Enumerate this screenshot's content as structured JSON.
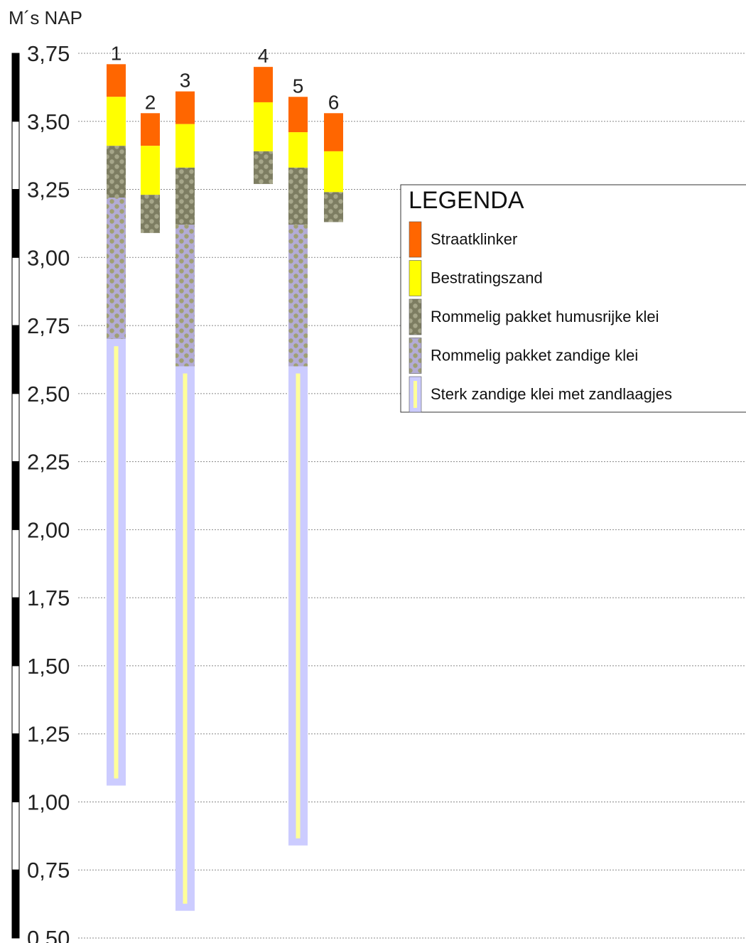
{
  "unit_label": "M´s NAP",
  "axis": {
    "min": 0.5,
    "max": 3.75,
    "tick_labels": [
      "3,75",
      "3,50",
      "3,25",
      "3,00",
      "2,75",
      "2,50",
      "2,25",
      "2,00",
      "1,75",
      "1,50",
      "1,25",
      "1,00",
      "0,75",
      "0,50"
    ],
    "tick_values": [
      3.75,
      3.5,
      3.25,
      3.0,
      2.75,
      2.5,
      2.25,
      2.0,
      1.75,
      1.5,
      1.25,
      1.0,
      0.75,
      0.5
    ]
  },
  "legend": {
    "title": "LEGENDA",
    "items": [
      {
        "key": "straatklinker",
        "label": "Straatklinker"
      },
      {
        "key": "bestratingszand",
        "label": "Bestratingszand"
      },
      {
        "key": "humusklei",
        "label": "Rommelig pakket humusrijke klei"
      },
      {
        "key": "zandigeklei",
        "label": "Rommelig pakket zandige klei"
      },
      {
        "key": "sterkzandig",
        "label": "Sterk zandige klei met zandlaagjes"
      }
    ]
  },
  "colors": {
    "straatklinker": "#ff6600",
    "bestratingszand": "#ffff00",
    "humusklei_bg": "#7d7d62",
    "humusklei_dot": "#a6a68a",
    "zandigeklei_bg": "#b3acd6",
    "zandigeklei_dot": "#9f9f74",
    "sterkzandig_bg": "#ccccff",
    "sterkzandig_stripe": "#ffff99",
    "gridline": "#888888"
  },
  "borings": [
    {
      "label": "1",
      "layers": [
        {
          "type": "straatklinker",
          "top": 3.71,
          "bottom": 3.59
        },
        {
          "type": "bestratingszand",
          "top": 3.59,
          "bottom": 3.41
        },
        {
          "type": "humusklei",
          "top": 3.41,
          "bottom": 3.22
        },
        {
          "type": "zandigeklei",
          "top": 3.22,
          "bottom": 2.7
        },
        {
          "type": "sterkzandig",
          "top": 2.7,
          "bottom": 1.06
        }
      ]
    },
    {
      "label": "2",
      "layers": [
        {
          "type": "straatklinker",
          "top": 3.53,
          "bottom": 3.41
        },
        {
          "type": "bestratingszand",
          "top": 3.41,
          "bottom": 3.23
        },
        {
          "type": "humusklei",
          "top": 3.23,
          "bottom": 3.09
        }
      ]
    },
    {
      "label": "3",
      "layers": [
        {
          "type": "straatklinker",
          "top": 3.61,
          "bottom": 3.49
        },
        {
          "type": "bestratingszand",
          "top": 3.49,
          "bottom": 3.33
        },
        {
          "type": "humusklei",
          "top": 3.33,
          "bottom": 3.12
        },
        {
          "type": "zandigeklei",
          "top": 3.12,
          "bottom": 2.6
        },
        {
          "type": "sterkzandig",
          "top": 2.6,
          "bottom": 0.6
        }
      ]
    },
    {
      "label": "4",
      "layers": [
        {
          "type": "straatklinker",
          "top": 3.7,
          "bottom": 3.57
        },
        {
          "type": "bestratingszand",
          "top": 3.57,
          "bottom": 3.39
        },
        {
          "type": "humusklei",
          "top": 3.39,
          "bottom": 3.27
        }
      ]
    },
    {
      "label": "5",
      "layers": [
        {
          "type": "straatklinker",
          "top": 3.59,
          "bottom": 3.46
        },
        {
          "type": "bestratingszand",
          "top": 3.46,
          "bottom": 3.33
        },
        {
          "type": "humusklei",
          "top": 3.33,
          "bottom": 3.12
        },
        {
          "type": "zandigeklei",
          "top": 3.12,
          "bottom": 2.6
        },
        {
          "type": "sterkzandig",
          "top": 2.6,
          "bottom": 0.84
        }
      ]
    },
    {
      "label": "6",
      "layers": [
        {
          "type": "straatklinker",
          "top": 3.53,
          "bottom": 3.39
        },
        {
          "type": "bestratingszand",
          "top": 3.39,
          "bottom": 3.24
        },
        {
          "type": "humusklei",
          "top": 3.24,
          "bottom": 3.13
        }
      ]
    }
  ]
}
